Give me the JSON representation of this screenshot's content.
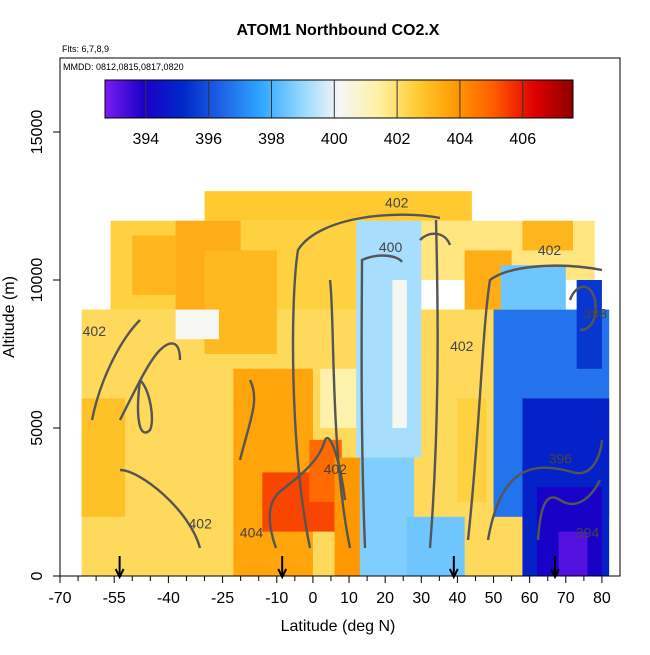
{
  "chart_data": {
    "type": "heatmap",
    "title": "ATOM1 Northbound CO2.X",
    "subtitle": "Flts: 6,7,8,9",
    "annotation": "MMDD: 0812,0815,0817,0820",
    "xlabel": "Latitude (deg N)",
    "ylabel": "Altitude (m)",
    "xlim": [
      -70,
      85
    ],
    "ylim": [
      0,
      17500
    ],
    "x_ticks": [
      -70,
      -55,
      -40,
      -25,
      -10,
      0,
      10,
      20,
      30,
      40,
      50,
      60,
      70,
      80
    ],
    "x_minor_ticks": [
      -65,
      -60,
      -50,
      -45,
      -35,
      -30,
      -20,
      -15,
      -5,
      5,
      15,
      25,
      35,
      45,
      55,
      65,
      75
    ],
    "y_ticks": [
      0,
      5000,
      10000,
      15000
    ],
    "grid": false,
    "colorbar": {
      "position": "top",
      "range": [
        392.7,
        407.6
      ],
      "ticks": [
        394,
        396,
        398,
        400,
        402,
        404,
        406
      ],
      "colors": [
        "#7a1df0",
        "#1a00c8",
        "#0028c8",
        "#1e64e6",
        "#2ea6ff",
        "#8fd6ff",
        "#f6f6f6",
        "#fff1a6",
        "#ffcc33",
        "#ff9900",
        "#ff5a00",
        "#e00000",
        "#8c0000"
      ]
    },
    "contour_labels": [
      {
        "text": "402",
        "x": 23.2,
        "y": 12450
      },
      {
        "text": "400",
        "x": 21.5,
        "y": 10950
      },
      {
        "text": "402",
        "x": 65.5,
        "y": 10850
      },
      {
        "text": "402",
        "x": -60.5,
        "y": 8100
      },
      {
        "text": "398",
        "x": 78.2,
        "y": 8700
      },
      {
        "text": "402",
        "x": 41.2,
        "y": 7600
      },
      {
        "text": "402",
        "x": 6.2,
        "y": 3450
      },
      {
        "text": "396",
        "x": 68.5,
        "y": 3800
      },
      {
        "text": "402",
        "x": -31.2,
        "y": 1600
      },
      {
        "text": "404",
        "x": -17,
        "y": 1300
      },
      {
        "text": "394",
        "x": 76,
        "y": 1300
      }
    ],
    "flight_markers_x": [
      -53.5,
      -8.5,
      39,
      67
    ],
    "data_regions": [
      {
        "x": [
          -64,
          82
        ],
        "y": [
          0,
          9000
        ],
        "value": 402.2
      },
      {
        "x": [
          -56,
          30
        ],
        "y": [
          9000,
          12000
        ],
        "value": 402.5
      },
      {
        "x": [
          -30,
          44
        ],
        "y": [
          12000,
          13000
        ],
        "value": 402.7
      },
      {
        "x": [
          30,
          78
        ],
        "y": [
          10000,
          12000
        ],
        "value": 401.8
      },
      {
        "x": [
          -50,
          -38
        ],
        "y": [
          9500,
          11500
        ],
        "value": 403.2
      },
      {
        "x": [
          -38,
          -20
        ],
        "y": [
          9000,
          12000
        ],
        "value": 403.4
      },
      {
        "x": [
          -64,
          -52
        ],
        "y": [
          2000,
          6000
        ],
        "value": 402.9
      },
      {
        "x": [
          -22,
          0
        ],
        "y": [
          0,
          7000
        ],
        "value": 403.6
      },
      {
        "x": [
          -14,
          6
        ],
        "y": [
          1500,
          3500
        ],
        "value": 405.4
      },
      {
        "x": [
          -1,
          8
        ],
        "y": [
          2500,
          4600
        ],
        "value": 404.8
      },
      {
        "x": [
          6,
          14
        ],
        "y": [
          0,
          4000
        ],
        "value": 403.9
      },
      {
        "x": [
          -30,
          -10
        ],
        "y": [
          7500,
          11000
        ],
        "value": 403.1
      },
      {
        "x": [
          42,
          55
        ],
        "y": [
          9000,
          11000
        ],
        "value": 403.4
      },
      {
        "x": [
          58,
          72
        ],
        "y": [
          11000,
          12000
        ],
        "value": 403.2
      },
      {
        "x": [
          2,
          13
        ],
        "y": [
          5000,
          7000
        ],
        "value": 401.3
      },
      {
        "x": [
          12,
          30
        ],
        "y": [
          4000,
          12000
        ],
        "value": 399.2
      },
      {
        "x": [
          22,
          26
        ],
        "y": [
          5000,
          10000
        ],
        "value": 400.2
      },
      {
        "x": [
          13,
          28
        ],
        "y": [
          0,
          4000
        ],
        "value": 398.7
      },
      {
        "x": [
          26,
          42
        ],
        "y": [
          0,
          2000
        ],
        "value": 398.5
      },
      {
        "x": [
          -38,
          -26
        ],
        "y": [
          8000,
          9000
        ],
        "value": 400.2
      },
      {
        "x": [
          50,
          82
        ],
        "y": [
          2000,
          9000
        ],
        "value": 396.7
      },
      {
        "x": [
          58,
          82
        ],
        "y": [
          0,
          6000
        ],
        "value": 395.0
      },
      {
        "x": [
          62,
          80
        ],
        "y": [
          0,
          3000
        ],
        "value": 394.0
      },
      {
        "x": [
          68,
          76
        ],
        "y": [
          0,
          1500
        ],
        "value": 393.2
      },
      {
        "x": [
          73,
          80
        ],
        "y": [
          7000,
          10000
        ],
        "value": 395.5
      },
      {
        "x": [
          52,
          70
        ],
        "y": [
          9000,
          10500
        ],
        "value": 398.5
      },
      {
        "x": [
          40,
          48
        ],
        "y": [
          2500,
          6000
        ],
        "value": 402.5
      }
    ]
  }
}
